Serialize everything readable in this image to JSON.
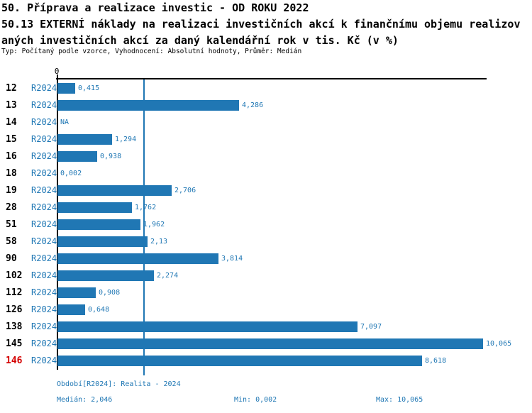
{
  "header": {
    "title_line1": "50. Příprava a realizace investic - OD ROKU 2022",
    "title_line2": "50.13 EXTERNÍ náklady na realizaci investičních akcí k finančnímu objemu realizov",
    "title_line3": "aných investičních akcí za daný kalendářní rok v tis. Kč (v %)",
    "meta_line": "Typ: Počítaný podle vzorce, Vyhodnocení: Absolutní hodnoty, Průměr: Medián"
  },
  "chart_data": {
    "type": "bar",
    "orientation": "horizontal",
    "axis_zero_label": "0",
    "xlim": [
      0,
      10.16
    ],
    "grid": false,
    "median_value": 2.046,
    "colors": {
      "bar": "#2077B4",
      "blue_text": "#1F77B4",
      "median_line": "#1F77B4",
      "highlight_row_id": "#D40000",
      "axis": "#000000"
    },
    "rows": [
      {
        "id": "12",
        "period": "R2024",
        "value": 0.415,
        "label": "0,415",
        "highlight": false
      },
      {
        "id": "13",
        "period": "R2024",
        "value": 4.286,
        "label": "4,286",
        "highlight": false
      },
      {
        "id": "14",
        "period": "R2024",
        "value": null,
        "label": "NA",
        "highlight": false
      },
      {
        "id": "15",
        "period": "R2024",
        "value": 1.294,
        "label": "1,294",
        "highlight": false
      },
      {
        "id": "16",
        "period": "R2024",
        "value": 0.938,
        "label": "0,938",
        "highlight": false
      },
      {
        "id": "18",
        "period": "R2024",
        "value": 0.002,
        "label": "0,002",
        "highlight": false
      },
      {
        "id": "19",
        "period": "R2024",
        "value": 2.706,
        "label": "2,706",
        "highlight": false
      },
      {
        "id": "28",
        "period": "R2024",
        "value": 1.762,
        "label": "1,762",
        "highlight": false
      },
      {
        "id": "51",
        "period": "R2024",
        "value": 1.962,
        "label": "1,962",
        "highlight": false
      },
      {
        "id": "58",
        "period": "R2024",
        "value": 2.13,
        "label": "2,13",
        "highlight": false
      },
      {
        "id": "90",
        "period": "R2024",
        "value": 3.814,
        "label": "3,814",
        "highlight": false
      },
      {
        "id": "102",
        "period": "R2024",
        "value": 2.274,
        "label": "2,274",
        "highlight": false
      },
      {
        "id": "112",
        "period": "R2024",
        "value": 0.908,
        "label": "0,908",
        "highlight": false
      },
      {
        "id": "126",
        "period": "R2024",
        "value": 0.648,
        "label": "0,648",
        "highlight": false
      },
      {
        "id": "138",
        "period": "R2024",
        "value": 7.097,
        "label": "7,097",
        "highlight": false
      },
      {
        "id": "145",
        "period": "R2024",
        "value": 10.065,
        "label": "10,065",
        "highlight": false
      },
      {
        "id": "146",
        "period": "R2024",
        "value": 8.618,
        "label": "8,618",
        "highlight": true
      }
    ]
  },
  "footer": {
    "period_info": "Období[R2024]: Realita - 2024",
    "median": "Medián: 2,046",
    "min": "Min: 0,002",
    "max": "Max: 10,065"
  }
}
